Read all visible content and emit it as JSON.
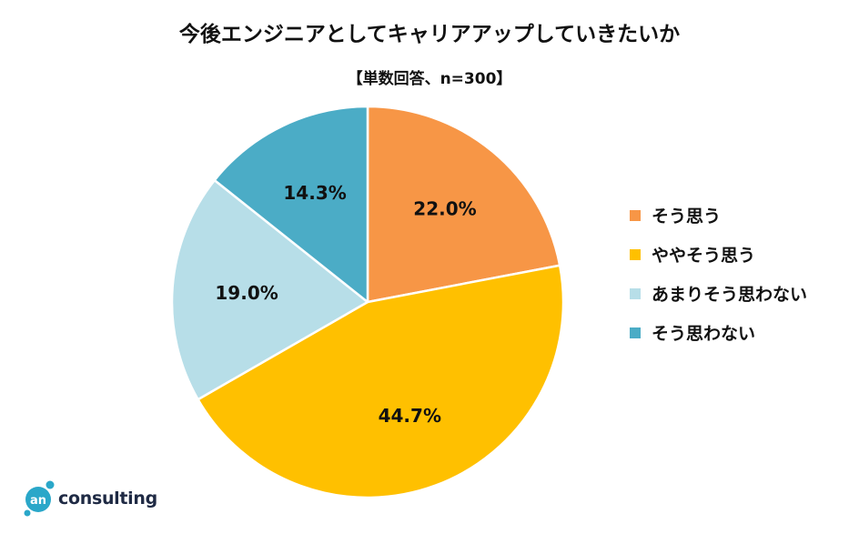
{
  "chart_data": {
    "type": "pie",
    "title": "今後エンジニアとしてキャリアアップしていきたいか",
    "subtitle": "【単数回答、n=300】",
    "slices": [
      {
        "label": "そう思う",
        "value": 22.0,
        "display": "22.0%",
        "color": "#F79646"
      },
      {
        "label": "ややそう思う",
        "value": 44.7,
        "display": "44.7%",
        "color": "#FFC000"
      },
      {
        "label": "あまりそう思わない",
        "value": 19.0,
        "display": "19.0%",
        "color": "#B7DEE8"
      },
      {
        "label": "そう思わない",
        "value": 14.3,
        "display": "14.3%",
        "color": "#4BACC6"
      }
    ],
    "start_angle": "12 o'clock",
    "direction": "clockwise",
    "legend_position": "right"
  },
  "logo": {
    "mark_text": "an",
    "text": "consulting",
    "mark_color": "#2AA7C9"
  }
}
